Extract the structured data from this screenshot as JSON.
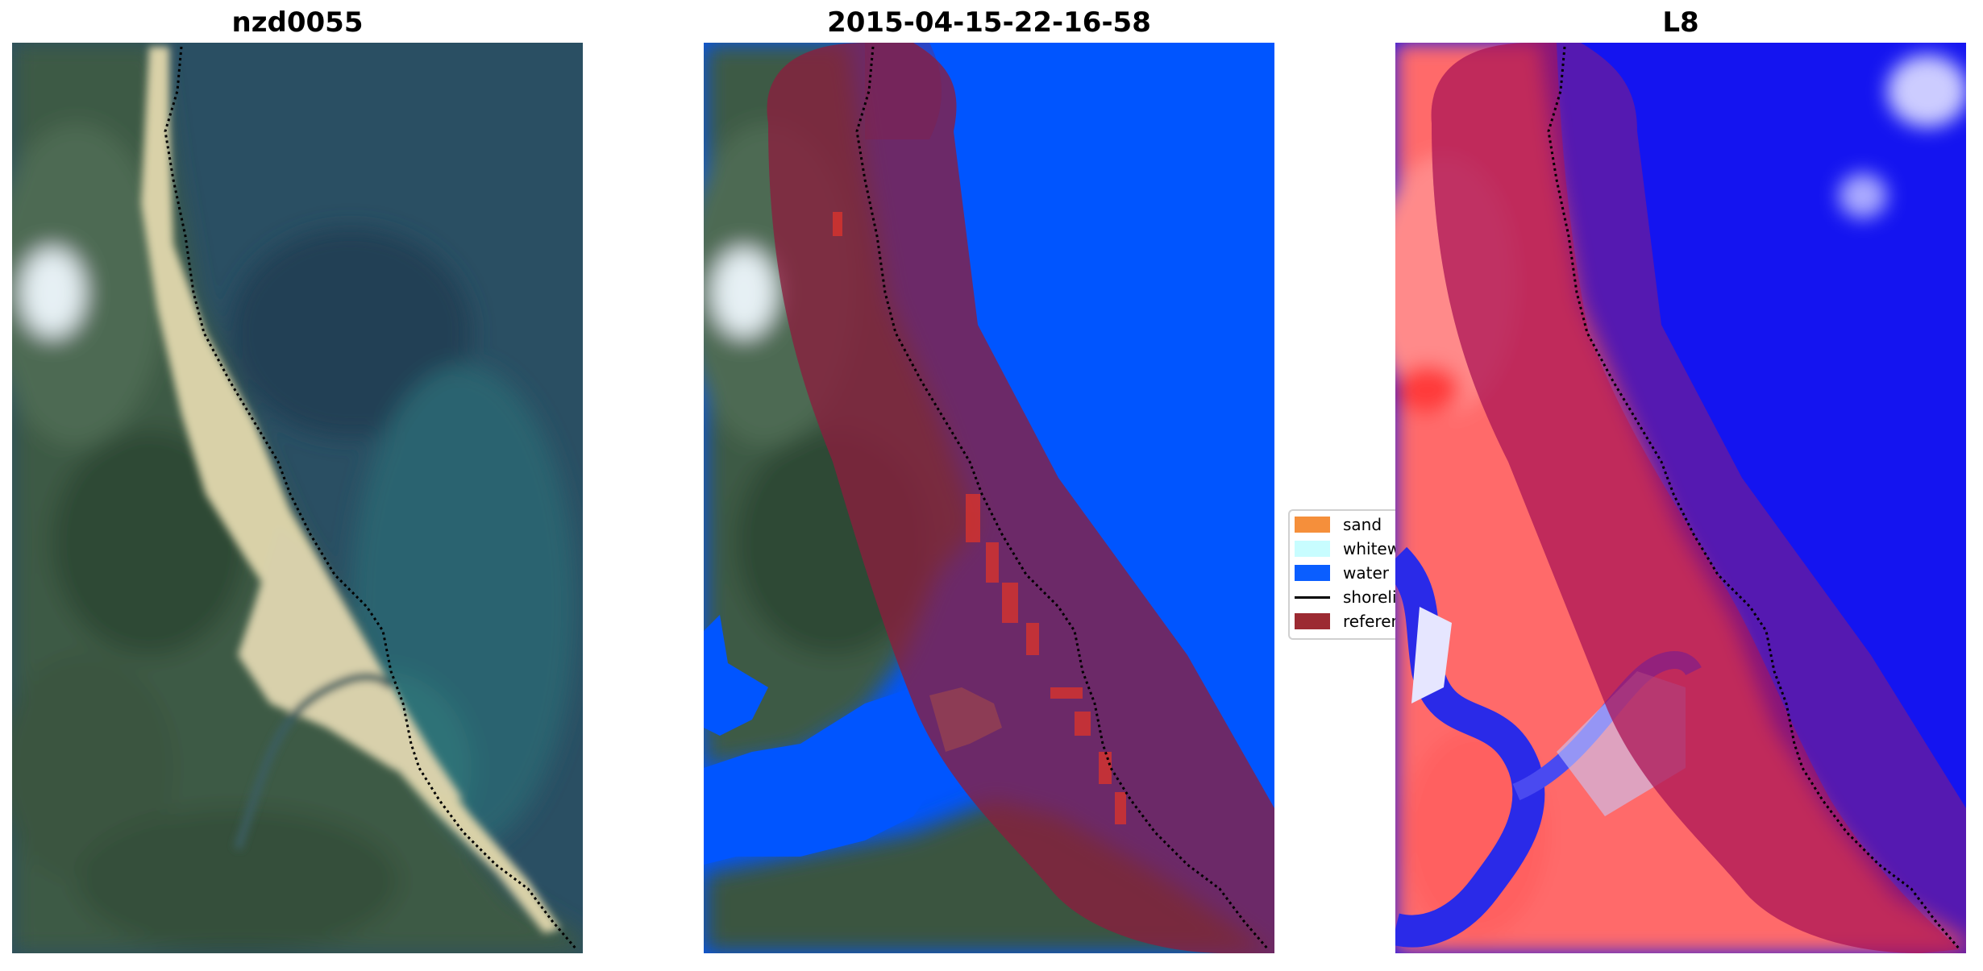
{
  "panels": [
    {
      "title": "nzd0055"
    },
    {
      "title": "2015-04-15-22-16-58"
    },
    {
      "title": "L8"
    }
  ],
  "legend": {
    "items": [
      {
        "label": "sand",
        "color": "#f58f3b",
        "kind": "patch"
      },
      {
        "label": "whitewater",
        "color": "#c8fdff",
        "kind": "patch"
      },
      {
        "label": "water",
        "color": "#0a5eff",
        "kind": "patch"
      },
      {
        "label": "shoreline",
        "color": "#000000",
        "kind": "line"
      },
      {
        "label": "reference",
        "color": "#9c2a32",
        "kind": "patch"
      }
    ]
  },
  "colors": {
    "water_class": "#0055ff",
    "reference_buffer": "#8a1e3e",
    "index_positive": "#ff2a2a",
    "index_negative": "#0000ff",
    "shoreline": "#000000"
  }
}
